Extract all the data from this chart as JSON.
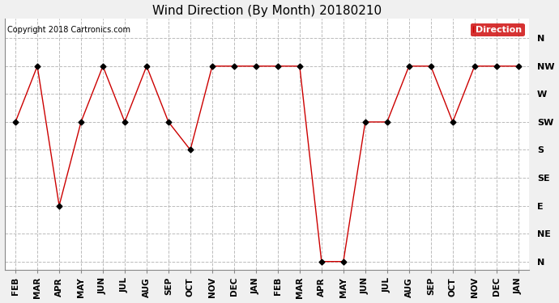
{
  "title": "Wind Direction (By Month) 20180210",
  "copyright": "Copyright 2018 Cartronics.com",
  "legend_label": "Direction",
  "x_labels": [
    "FEB",
    "MAR",
    "APR",
    "MAY",
    "JUN",
    "JUL",
    "AUG",
    "SEP",
    "OCT",
    "NOV",
    "DEC",
    "JAN",
    "FEB",
    "MAR",
    "APR",
    "MAY",
    "JUN",
    "JUL",
    "AUG",
    "SEP",
    "OCT",
    "NOV",
    "DEC",
    "JAN"
  ],
  "y_labels": [
    "N",
    "NW",
    "W",
    "SW",
    "S",
    "SE",
    "E",
    "NE",
    "N"
  ],
  "y_values": [
    8,
    7,
    6,
    5,
    4,
    3,
    2,
    1,
    0
  ],
  "data_values": [
    5,
    7,
    2,
    5,
    7,
    5,
    7,
    5,
    4,
    7,
    7,
    7,
    7,
    7,
    0,
    0,
    5,
    5,
    7,
    7,
    5,
    7,
    7,
    7
  ],
  "line_color": "#cc0000",
  "marker_color": "#000000",
  "marker_size": 3.5,
  "plot_bg_color": "#ffffff",
  "fig_bg_color": "#f0f0f0",
  "grid_color": "#bbbbbb",
  "title_fontsize": 11,
  "copyright_fontsize": 7,
  "legend_bg": "#cc0000",
  "legend_fg": "#ffffff",
  "tick_fontsize": 7.5,
  "y_tick_fontsize": 8
}
